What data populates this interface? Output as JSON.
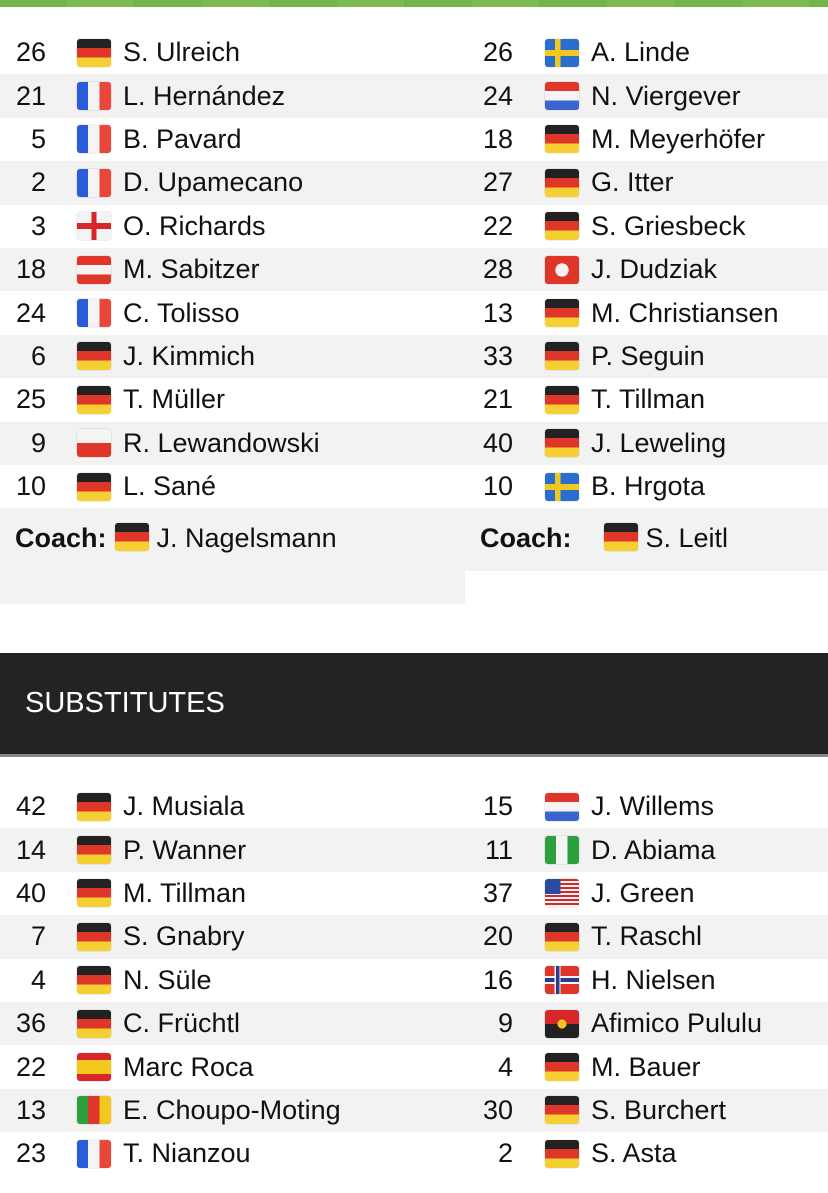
{
  "colors": {
    "accent": "#72b34a",
    "header_bg": "#232323",
    "row_alt": "#f2f2f2"
  },
  "lineups": {
    "home": [
      {
        "num": "26",
        "flag": "de",
        "name": "S. Ulreich"
      },
      {
        "num": "21",
        "flag": "fr",
        "name": "L. Hernández"
      },
      {
        "num": "5",
        "flag": "fr",
        "name": "B. Pavard"
      },
      {
        "num": "2",
        "flag": "fr",
        "name": "D. Upamecano"
      },
      {
        "num": "3",
        "flag": "en",
        "name": "O. Richards"
      },
      {
        "num": "18",
        "flag": "at",
        "name": "M. Sabitzer"
      },
      {
        "num": "24",
        "flag": "fr",
        "name": "C. Tolisso"
      },
      {
        "num": "6",
        "flag": "de",
        "name": "J. Kimmich"
      },
      {
        "num": "25",
        "flag": "de",
        "name": "T. Müller"
      },
      {
        "num": "9",
        "flag": "pl",
        "name": "R. Lewandowski"
      },
      {
        "num": "10",
        "flag": "de",
        "name": "L. Sané"
      }
    ],
    "away": [
      {
        "num": "26",
        "flag": "se",
        "name": "A. Linde"
      },
      {
        "num": "24",
        "flag": "nl",
        "name": "N. Viergever"
      },
      {
        "num": "18",
        "flag": "de",
        "name": "M. Meyerhöfer"
      },
      {
        "num": "27",
        "flag": "de",
        "name": "G. Itter"
      },
      {
        "num": "22",
        "flag": "de",
        "name": "S. Griesbeck"
      },
      {
        "num": "28",
        "flag": "tn",
        "name": "J. Dudziak"
      },
      {
        "num": "13",
        "flag": "de",
        "name": "M. Christiansen"
      },
      {
        "num": "33",
        "flag": "de",
        "name": "P. Seguin"
      },
      {
        "num": "21",
        "flag": "de",
        "name": "T. Tillman"
      },
      {
        "num": "40",
        "flag": "de",
        "name": "J. Leweling"
      },
      {
        "num": "10",
        "flag": "se",
        "name": "B. Hrgota"
      }
    ],
    "coach_label": "Coach:",
    "home_coach": {
      "flag": "de",
      "name": "J. Nagelsmann"
    },
    "away_coach": {
      "flag": "de",
      "name": "S. Leitl"
    }
  },
  "substitutes": {
    "title": "SUBSTITUTES",
    "home": [
      {
        "num": "42",
        "flag": "de",
        "name": "J. Musiala"
      },
      {
        "num": "14",
        "flag": "de",
        "name": "P. Wanner"
      },
      {
        "num": "40",
        "flag": "de",
        "name": "M. Tillman"
      },
      {
        "num": "7",
        "flag": "de",
        "name": "S. Gnabry"
      },
      {
        "num": "4",
        "flag": "de",
        "name": "N. Süle"
      },
      {
        "num": "36",
        "flag": "de",
        "name": "C. Früchtl"
      },
      {
        "num": "22",
        "flag": "es",
        "name": "Marc Roca"
      },
      {
        "num": "13",
        "flag": "cm",
        "name": "E. Choupo-Moting"
      },
      {
        "num": "23",
        "flag": "fr",
        "name": "T. Nianzou"
      }
    ],
    "away": [
      {
        "num": "15",
        "flag": "nl",
        "name": "J. Willems"
      },
      {
        "num": "11",
        "flag": "ng",
        "name": "D. Abiama"
      },
      {
        "num": "37",
        "flag": "us",
        "name": "J. Green"
      },
      {
        "num": "20",
        "flag": "de",
        "name": "T. Raschl"
      },
      {
        "num": "16",
        "flag": "no",
        "name": "H. Nielsen"
      },
      {
        "num": "9",
        "flag": "ao",
        "name": "Afimico Pululu"
      },
      {
        "num": "4",
        "flag": "de",
        "name": "M. Bauer"
      },
      {
        "num": "30",
        "flag": "de",
        "name": "S. Burchert"
      },
      {
        "num": "2",
        "flag": "de",
        "name": "S. Asta"
      }
    ]
  }
}
